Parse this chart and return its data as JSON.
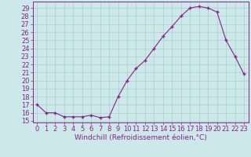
{
  "x": [
    0,
    1,
    2,
    3,
    4,
    5,
    6,
    7,
    8,
    9,
    10,
    11,
    12,
    13,
    14,
    15,
    16,
    17,
    18,
    19,
    20,
    21,
    22,
    23
  ],
  "y": [
    17.0,
    16.0,
    16.0,
    15.5,
    15.5,
    15.5,
    15.7,
    15.4,
    15.5,
    18.0,
    20.0,
    21.5,
    22.5,
    24.0,
    25.5,
    26.7,
    28.0,
    29.0,
    29.2,
    29.0,
    28.5,
    25.0,
    23.0,
    20.8
  ],
  "line_color": "#882288",
  "marker": "+",
  "markersize": 3,
  "markeredgewidth": 1.0,
  "linewidth": 0.8,
  "bg_color": "#cce8e8",
  "grid_color": "#aacece",
  "xlabel": "Windchill (Refroidissement éolien,°C)",
  "ylim": [
    14.8,
    29.8
  ],
  "xlim": [
    -0.5,
    23.5
  ],
  "yticks": [
    15,
    16,
    17,
    18,
    19,
    20,
    21,
    22,
    23,
    24,
    25,
    26,
    27,
    28,
    29
  ],
  "xticks": [
    0,
    1,
    2,
    3,
    4,
    5,
    6,
    7,
    8,
    9,
    10,
    11,
    12,
    13,
    14,
    15,
    16,
    17,
    18,
    19,
    20,
    21,
    22,
    23
  ],
  "tick_color": "#882288",
  "axis_color": "#882288",
  "label_fontsize": 6.5,
  "tick_fontsize": 6.0
}
